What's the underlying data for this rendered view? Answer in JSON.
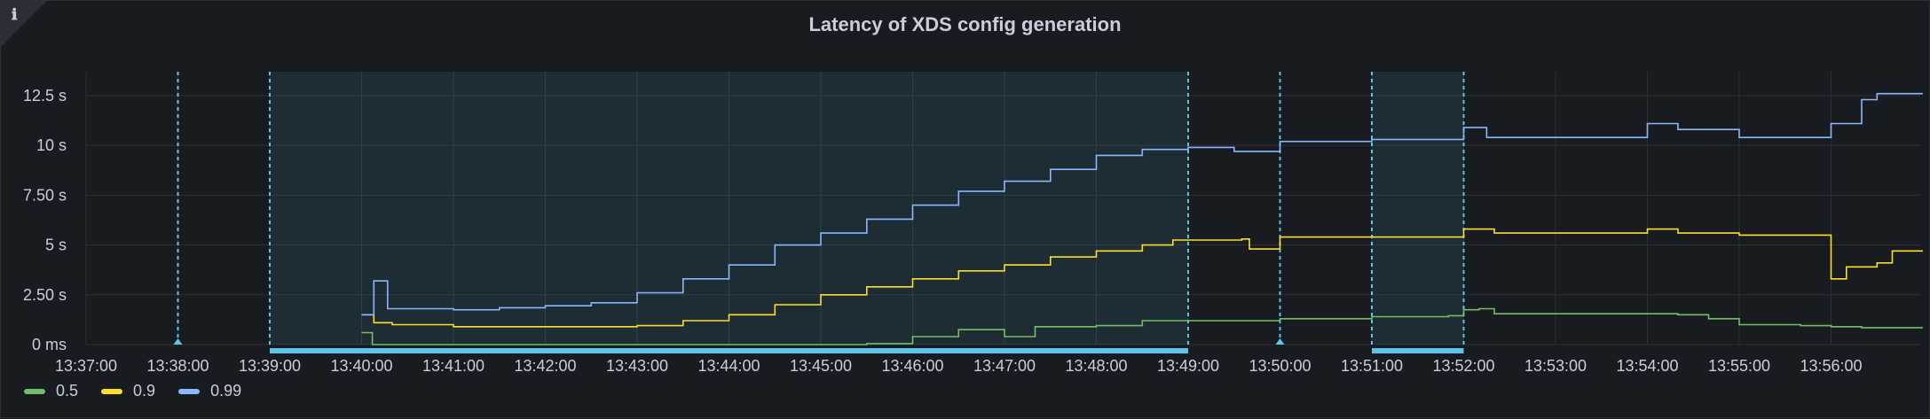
{
  "panel": {
    "title": "Latency of XDS config generation",
    "info_icon": "info-icon"
  },
  "legend": [
    {
      "label": "0.5",
      "color": "#73bf69"
    },
    {
      "label": "0.9",
      "color": "#fade2a"
    },
    {
      "label": "0.99",
      "color": "#8ab8ff"
    }
  ],
  "chart_data": {
    "type": "line",
    "title": "Latency of XDS config generation",
    "xlabel": "",
    "ylabel": "",
    "x_ticks": [
      "13:37:00",
      "13:38:00",
      "13:39:00",
      "13:40:00",
      "13:41:00",
      "13:42:00",
      "13:43:00",
      "13:44:00",
      "13:45:00",
      "13:46:00",
      "13:47:00",
      "13:48:00",
      "13:49:00",
      "13:50:00",
      "13:51:00",
      "13:52:00",
      "13:53:00",
      "13:54:00",
      "13:55:00",
      "13:56:00"
    ],
    "xlim": [
      "13:37:00",
      "13:57:00"
    ],
    "y_ticks": [
      "0 ms",
      "2.50 s",
      "5 s",
      "7.50 s",
      "10 s",
      "12.5 s"
    ],
    "ylim": [
      0,
      13.7
    ],
    "grid": true,
    "legend_position": "bottom-left",
    "annotations": {
      "lines": [
        "13:38:00",
        "13:50:00"
      ],
      "regions": [
        [
          "13:39:00",
          "13:49:00"
        ],
        [
          "13:51:00",
          "13:52:00"
        ]
      ],
      "color": "#5dc4e9"
    },
    "series": [
      {
        "name": "0.5",
        "color": "#73bf69",
        "points": [
          [
            "13:40:00",
            0.6
          ],
          [
            "13:40:05",
            0.6
          ],
          [
            "13:40:07",
            0
          ],
          [
            "13:45:30",
            0.05
          ],
          [
            "13:46:00",
            0.4
          ],
          [
            "13:46:30",
            0.75
          ],
          [
            "13:47:00",
            0.4
          ],
          [
            "13:47:10",
            0.4
          ],
          [
            "13:47:20",
            0.9
          ],
          [
            "13:48:00",
            0.95
          ],
          [
            "13:48:30",
            1.2
          ],
          [
            "13:50:00",
            1.3
          ],
          [
            "13:51:00",
            1.4
          ],
          [
            "13:51:50",
            1.45
          ],
          [
            "13:52:00",
            1.75
          ],
          [
            "13:52:10",
            1.8
          ],
          [
            "13:52:20",
            1.55
          ],
          [
            "13:54:00",
            1.55
          ],
          [
            "13:54:20",
            1.5
          ],
          [
            "13:54:40",
            1.3
          ],
          [
            "13:55:00",
            1.0
          ],
          [
            "13:55:40",
            0.95
          ],
          [
            "13:56:00",
            0.9
          ],
          [
            "13:56:20",
            0.85
          ],
          [
            "13:57:00",
            0.85
          ]
        ]
      },
      {
        "name": "0.9",
        "color": "#fade2a",
        "points": [
          [
            "13:40:00",
            1.5
          ],
          [
            "13:40:05",
            1.5
          ],
          [
            "13:40:08",
            1.1
          ],
          [
            "13:40:20",
            1.0
          ],
          [
            "13:41:00",
            0.9
          ],
          [
            "13:42:00",
            0.9
          ],
          [
            "13:43:00",
            0.95
          ],
          [
            "13:43:30",
            1.2
          ],
          [
            "13:44:00",
            1.5
          ],
          [
            "13:44:30",
            2.0
          ],
          [
            "13:45:00",
            2.5
          ],
          [
            "13:45:30",
            2.9
          ],
          [
            "13:46:00",
            3.3
          ],
          [
            "13:46:30",
            3.7
          ],
          [
            "13:47:00",
            4.0
          ],
          [
            "13:47:30",
            4.4
          ],
          [
            "13:48:00",
            4.7
          ],
          [
            "13:48:30",
            5.0
          ],
          [
            "13:48:50",
            5.25
          ],
          [
            "13:49:00",
            5.25
          ],
          [
            "13:49:35",
            5.3
          ],
          [
            "13:49:40",
            4.8
          ],
          [
            "13:49:58",
            4.8
          ],
          [
            "13:50:00",
            5.4
          ],
          [
            "13:51:00",
            5.4
          ],
          [
            "13:51:55",
            5.4
          ],
          [
            "13:52:00",
            5.8
          ],
          [
            "13:52:20",
            5.6
          ],
          [
            "13:54:00",
            5.8
          ],
          [
            "13:54:20",
            5.6
          ],
          [
            "13:55:00",
            5.5
          ],
          [
            "13:55:50",
            5.5
          ],
          [
            "13:56:00",
            3.3
          ],
          [
            "13:56:10",
            3.9
          ],
          [
            "13:56:30",
            4.1
          ],
          [
            "13:56:40",
            4.7
          ],
          [
            "13:57:00",
            4.7
          ]
        ]
      },
      {
        "name": "0.99",
        "color": "#8ab8ff",
        "points": [
          [
            "13:40:00",
            1.5
          ],
          [
            "13:40:05",
            1.5
          ],
          [
            "13:40:08",
            3.2
          ],
          [
            "13:40:15",
            3.2
          ],
          [
            "13:40:17",
            1.8
          ],
          [
            "13:41:00",
            1.75
          ],
          [
            "13:41:30",
            1.85
          ],
          [
            "13:42:00",
            1.95
          ],
          [
            "13:42:30",
            2.1
          ],
          [
            "13:43:00",
            2.6
          ],
          [
            "13:43:30",
            3.3
          ],
          [
            "13:44:00",
            4.0
          ],
          [
            "13:44:30",
            5.0
          ],
          [
            "13:45:00",
            5.6
          ],
          [
            "13:45:30",
            6.3
          ],
          [
            "13:46:00",
            7.0
          ],
          [
            "13:46:30",
            7.7
          ],
          [
            "13:47:00",
            8.2
          ],
          [
            "13:47:30",
            8.8
          ],
          [
            "13:48:00",
            9.5
          ],
          [
            "13:48:30",
            9.8
          ],
          [
            "13:49:00",
            9.9
          ],
          [
            "13:49:30",
            9.7
          ],
          [
            "13:49:55",
            9.7
          ],
          [
            "13:50:00",
            10.2
          ],
          [
            "13:51:00",
            10.3
          ],
          [
            "13:51:55",
            10.3
          ],
          [
            "13:52:00",
            10.9
          ],
          [
            "13:52:15",
            10.4
          ],
          [
            "13:53:00",
            10.4
          ],
          [
            "13:53:55",
            10.4
          ],
          [
            "13:54:00",
            11.1
          ],
          [
            "13:54:20",
            10.8
          ],
          [
            "13:55:00",
            10.4
          ],
          [
            "13:55:50",
            10.4
          ],
          [
            "13:56:00",
            11.1
          ],
          [
            "13:56:20",
            12.3
          ],
          [
            "13:56:30",
            12.6
          ],
          [
            "13:57:00",
            12.6
          ]
        ]
      }
    ]
  }
}
